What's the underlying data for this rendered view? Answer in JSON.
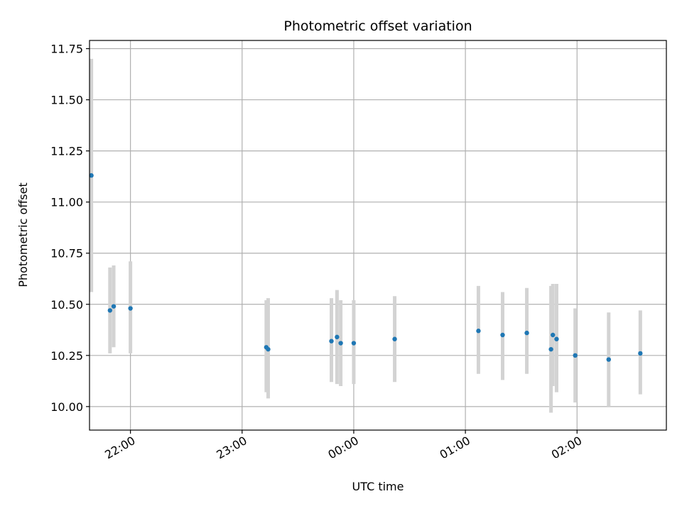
{
  "chart_data": {
    "type": "scatter",
    "title": "Photometric offset variation",
    "xlabel": "UTC time",
    "ylabel": "Photometric offset",
    "grid": true,
    "xlim": [
      "21:38",
      "02:48"
    ],
    "ylim": [
      9.885,
      11.79
    ],
    "x_ticks": [
      "22:00",
      "23:00",
      "00:00",
      "01:00",
      "02:00"
    ],
    "y_ticks": [
      "10.00",
      "10.25",
      "10.50",
      "10.75",
      "11.00",
      "11.25",
      "11.50",
      "11.75"
    ],
    "marker_color": "#1f77b4",
    "errorbar_color": "#d3d3d3",
    "series": [
      {
        "points": [
          {
            "x": "21:39",
            "y": 11.13,
            "low": 10.56,
            "high": 11.7
          },
          {
            "x": "21:49",
            "y": 10.47,
            "low": 10.26,
            "high": 10.68
          },
          {
            "x": "21:51",
            "y": 10.49,
            "low": 10.29,
            "high": 10.69
          },
          {
            "x": "22:00",
            "y": 10.48,
            "low": 10.26,
            "high": 10.71
          },
          {
            "x": "23:13",
            "y": 10.29,
            "low": 10.07,
            "high": 10.52
          },
          {
            "x": "23:14",
            "y": 10.28,
            "low": 10.04,
            "high": 10.53
          },
          {
            "x": "23:48",
            "y": 10.32,
            "low": 10.12,
            "high": 10.53
          },
          {
            "x": "23:51",
            "y": 10.34,
            "low": 10.11,
            "high": 10.57
          },
          {
            "x": "23:53",
            "y": 10.31,
            "low": 10.1,
            "high": 10.52
          },
          {
            "x": "00:00",
            "y": 10.31,
            "low": 10.11,
            "high": 10.52
          },
          {
            "x": "00:22",
            "y": 10.33,
            "low": 10.12,
            "high": 10.54
          },
          {
            "x": "01:07",
            "y": 10.37,
            "low": 10.16,
            "high": 10.59
          },
          {
            "x": "01:20",
            "y": 10.35,
            "low": 10.13,
            "high": 10.56
          },
          {
            "x": "01:33",
            "y": 10.36,
            "low": 10.16,
            "high": 10.58
          },
          {
            "x": "01:46",
            "y": 10.28,
            "low": 9.97,
            "high": 10.59
          },
          {
            "x": "01:47",
            "y": 10.35,
            "low": 10.1,
            "high": 10.6
          },
          {
            "x": "01:49",
            "y": 10.33,
            "low": 10.07,
            "high": 10.6
          },
          {
            "x": "01:59",
            "y": 10.25,
            "low": 10.02,
            "high": 10.48
          },
          {
            "x": "02:17",
            "y": 10.23,
            "low": 10.0,
            "high": 10.46
          },
          {
            "x": "02:34",
            "y": 10.26,
            "low": 10.06,
            "high": 10.47
          }
        ]
      }
    ]
  }
}
